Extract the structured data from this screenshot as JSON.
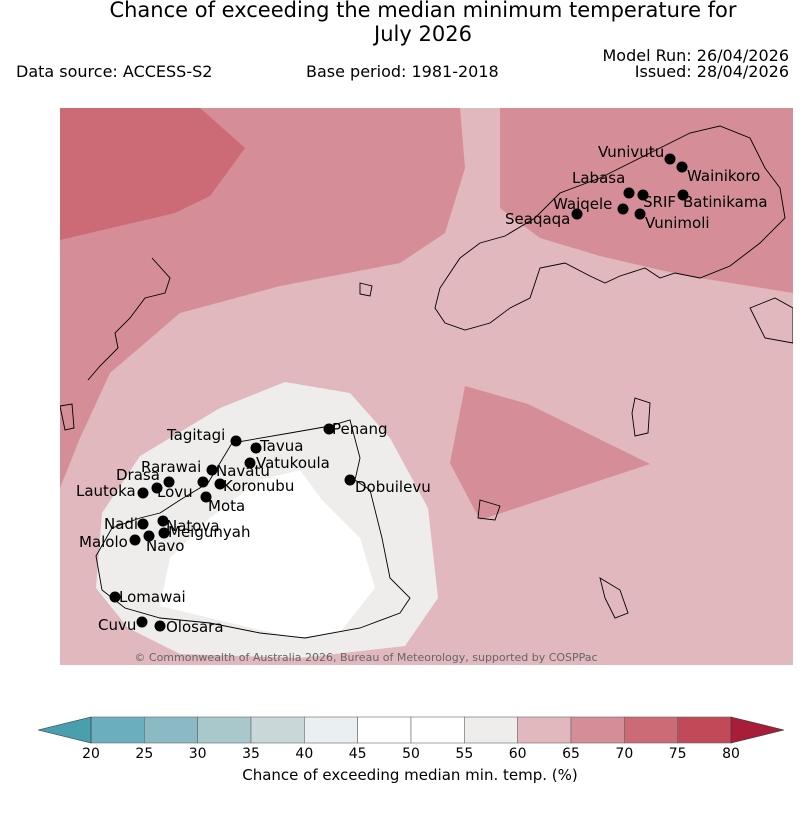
{
  "header": {
    "title_line1": "Chance of exceeding the median minimum temperature for",
    "title_line2": "July 2026",
    "model_run": "Model Run: 26/04/2026",
    "issued": "Issued: 28/04/2026",
    "data_source": "Data source: ACCESS-S2",
    "base_period": "Base period: 1981-2018"
  },
  "map": {
    "copyright": "© Commonwealth of Australia 2026, Bureau of Meteorology, supported by COSPPac",
    "stations": [
      "Vunivutu",
      "Wainikoro",
      "Labasa",
      "SRIF",
      "Batinikama",
      "Waiqele",
      "Seaqaqa",
      "Vunimoli",
      "Penang",
      "Tagitagi",
      "Tavua",
      "Vatukoula",
      "Rarawai",
      "Navatu",
      "Drasa",
      "Koronubu",
      "Lautoka",
      "Lovu",
      "Mota",
      "Dobuilevu",
      "Nadi",
      "Natova",
      "Meigunyah",
      "Malolo",
      "Navo",
      "Lomawai",
      "Cuvu",
      "Olosara"
    ]
  },
  "colorbar": {
    "label": "Chance of exceeding median min. temp. (%)",
    "ticks": [
      "20",
      "25",
      "30",
      "35",
      "40",
      "45",
      "50",
      "55",
      "60",
      "65",
      "70",
      "75",
      "80"
    ],
    "colors": [
      "#6baebd",
      "#8bbac4",
      "#a9c8cc",
      "#cad7d9",
      "#eaf0f2",
      "#ffffff",
      "#ffffff",
      "#eeedec",
      "#e0b8bd",
      "#d58d97",
      "#cc6a76",
      "#c14a59"
    ],
    "low_extend_color": "#4a9fae",
    "high_extend_color": "#a81e3a"
  }
}
